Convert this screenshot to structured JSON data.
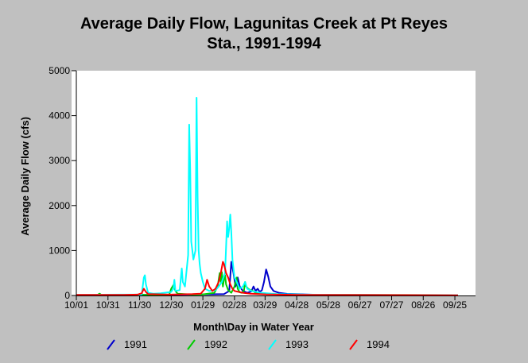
{
  "chart_data": {
    "type": "line",
    "title_line1": "Average Daily Flow, Lagunitas Creek at Pt Reyes",
    "title_line2": "Sta., 1991-1994",
    "xlabel": "Month\\Day in Water Year",
    "ylabel": "Average Daily Flow (cfs)",
    "ylim": [
      0,
      5000
    ],
    "xlim": [
      0,
      365
    ],
    "y_ticks": [
      "0",
      "1000",
      "2000",
      "3000",
      "4000",
      "5000"
    ],
    "x_tick_labels": [
      "10/01",
      "10/31",
      "11/30",
      "12/30",
      "01/29",
      "02/28",
      "03/29",
      "04/28",
      "05/28",
      "06/27",
      "07/27",
      "08/26",
      "09/25"
    ],
    "x_tick_days": [
      0,
      30,
      60,
      90,
      120,
      150,
      179,
      209,
      239,
      269,
      299,
      329,
      359
    ],
    "legend_position": "bottom",
    "grid": false,
    "background_color": "#ffffff",
    "frame_color": "#c0c0c0",
    "series": [
      {
        "name": "1991",
        "color": "#0000cc",
        "points": [
          [
            0,
            10
          ],
          [
            60,
            15
          ],
          [
            100,
            20
          ],
          [
            140,
            30
          ],
          [
            145,
            100
          ],
          [
            147,
            750
          ],
          [
            149,
            500
          ],
          [
            151,
            200
          ],
          [
            153,
            400
          ],
          [
            155,
            200
          ],
          [
            158,
            100
          ],
          [
            162,
            60
          ],
          [
            166,
            90
          ],
          [
            168,
            200
          ],
          [
            170,
            100
          ],
          [
            172,
            150
          ],
          [
            174,
            80
          ],
          [
            176,
            120
          ],
          [
            178,
            300
          ],
          [
            180,
            580
          ],
          [
            182,
            420
          ],
          [
            184,
            200
          ],
          [
            187,
            100
          ],
          [
            192,
            60
          ],
          [
            200,
            35
          ],
          [
            230,
            15
          ],
          [
            300,
            8
          ],
          [
            362,
            5
          ]
        ]
      },
      {
        "name": "1992",
        "color": "#00cc00",
        "points": [
          [
            0,
            10
          ],
          [
            20,
            10
          ],
          [
            22,
            40
          ],
          [
            24,
            10
          ],
          [
            40,
            10
          ],
          [
            60,
            15
          ],
          [
            62,
            30
          ],
          [
            64,
            12
          ],
          [
            88,
            15
          ],
          [
            90,
            150
          ],
          [
            92,
            230
          ],
          [
            94,
            100
          ],
          [
            96,
            40
          ],
          [
            110,
            20
          ],
          [
            120,
            25
          ],
          [
            125,
            40
          ],
          [
            131,
            60
          ],
          [
            134,
            200
          ],
          [
            136,
            500
          ],
          [
            137,
            300
          ],
          [
            138,
            520
          ],
          [
            139,
            200
          ],
          [
            140,
            350
          ],
          [
            141,
            450
          ],
          [
            142,
            250
          ],
          [
            144,
            120
          ],
          [
            147,
            60
          ],
          [
            150,
            200
          ],
          [
            152,
            400
          ],
          [
            153,
            150
          ],
          [
            155,
            70
          ],
          [
            157,
            60
          ],
          [
            159,
            110
          ],
          [
            160,
            300
          ],
          [
            161,
            200
          ],
          [
            163,
            150
          ],
          [
            165,
            120
          ],
          [
            167,
            110
          ],
          [
            170,
            60
          ],
          [
            175,
            40
          ],
          [
            185,
            30
          ],
          [
            210,
            20
          ],
          [
            250,
            12
          ],
          [
            362,
            8
          ]
        ]
      },
      {
        "name": "1993",
        "color": "#00ffff",
        "points": [
          [
            0,
            15
          ],
          [
            40,
            20
          ],
          [
            62,
            20
          ],
          [
            64,
            400
          ],
          [
            65,
            450
          ],
          [
            66,
            250
          ],
          [
            68,
            60
          ],
          [
            73,
            40
          ],
          [
            80,
            50
          ],
          [
            90,
            80
          ],
          [
            92,
            150
          ],
          [
            93,
            350
          ],
          [
            94,
            100
          ],
          [
            98,
            120
          ],
          [
            100,
            600
          ],
          [
            101,
            300
          ],
          [
            103,
            200
          ],
          [
            106,
            900
          ],
          [
            107,
            3800
          ],
          [
            108,
            2800
          ],
          [
            109,
            1200
          ],
          [
            110,
            1000
          ],
          [
            111,
            800
          ],
          [
            113,
            1000
          ],
          [
            114,
            4400
          ],
          [
            115,
            2200
          ],
          [
            116,
            1000
          ],
          [
            117,
            700
          ],
          [
            118,
            500
          ],
          [
            120,
            300
          ],
          [
            122,
            150
          ],
          [
            126,
            100
          ],
          [
            132,
            120
          ],
          [
            135,
            200
          ],
          [
            138,
            300
          ],
          [
            141,
            500
          ],
          [
            143,
            1650
          ],
          [
            144,
            1300
          ],
          [
            145,
            1500
          ],
          [
            146,
            1800
          ],
          [
            147,
            1400
          ],
          [
            148,
            800
          ],
          [
            150,
            400
          ],
          [
            152,
            300
          ],
          [
            155,
            150
          ],
          [
            158,
            200
          ],
          [
            160,
            300
          ],
          [
            162,
            150
          ],
          [
            166,
            100
          ],
          [
            175,
            60
          ],
          [
            190,
            30
          ],
          [
            215,
            20
          ],
          [
            260,
            12
          ],
          [
            362,
            8
          ]
        ]
      },
      {
        "name": "1994",
        "color": "#ff0000",
        "points": [
          [
            0,
            12
          ],
          [
            45,
            15
          ],
          [
            58,
            20
          ],
          [
            62,
            50
          ],
          [
            64,
            150
          ],
          [
            66,
            80
          ],
          [
            68,
            30
          ],
          [
            90,
            20
          ],
          [
            110,
            30
          ],
          [
            118,
            40
          ],
          [
            122,
            150
          ],
          [
            124,
            350
          ],
          [
            126,
            200
          ],
          [
            129,
            100
          ],
          [
            132,
            150
          ],
          [
            135,
            300
          ],
          [
            137,
            500
          ],
          [
            139,
            750
          ],
          [
            140,
            700
          ],
          [
            142,
            500
          ],
          [
            144,
            400
          ],
          [
            146,
            250
          ],
          [
            148,
            150
          ],
          [
            150,
            100
          ],
          [
            154,
            80
          ],
          [
            158,
            60
          ],
          [
            165,
            40
          ],
          [
            180,
            25
          ],
          [
            210,
            15
          ],
          [
            270,
            10
          ],
          [
            362,
            6
          ]
        ]
      }
    ]
  }
}
